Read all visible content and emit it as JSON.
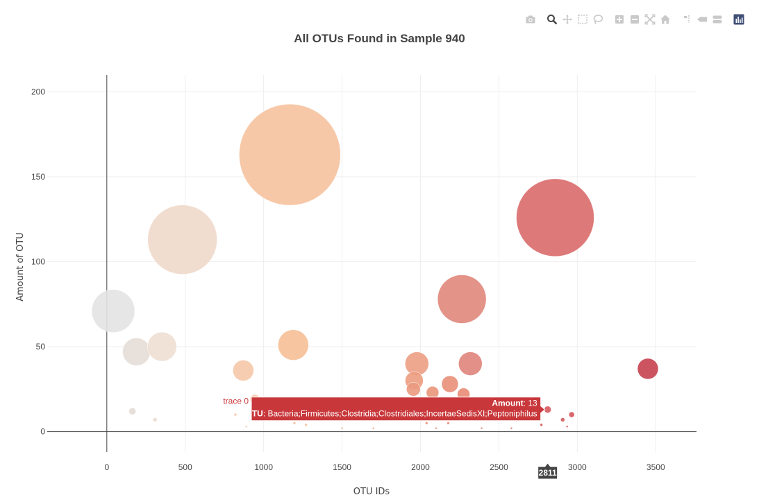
{
  "modebar": {
    "buttons": [
      {
        "name": "camera-icon"
      },
      {
        "name": "zoom-icon"
      },
      {
        "name": "pan-icon"
      },
      {
        "name": "box-select-icon"
      },
      {
        "name": "lasso-select-icon"
      },
      {
        "name": "zoom-in-icon"
      },
      {
        "name": "zoom-out-icon"
      },
      {
        "name": "autoscale-icon"
      },
      {
        "name": "home-icon"
      },
      {
        "name": "spike-lines-icon"
      },
      {
        "name": "hover-closest-icon"
      },
      {
        "name": "hover-compare-icon"
      },
      {
        "name": "plotly-logo-icon"
      }
    ],
    "icon_color": "#c9c9c9",
    "logo_color": "#3f4f75"
  },
  "chart_data": {
    "type": "scatter",
    "mode": "bubble",
    "title": "All OTUs Found in Sample 940",
    "xlabel": "OTU IDs",
    "ylabel": "Amount of OTU",
    "xlim": [
      -380,
      3760
    ],
    "ylim": [
      -12,
      210
    ],
    "xticks": [
      0,
      500,
      1000,
      1500,
      2000,
      2500,
      3000,
      3500
    ],
    "yticks": [
      0,
      50,
      100,
      150,
      200
    ],
    "grid": true,
    "colors": {
      "gridline": "#eeeeee",
      "axis": "#444444",
      "zeroline": "#444444"
    },
    "points": [
      {
        "x": 41,
        "y": 71,
        "r": 31,
        "color": "#e3e3e3"
      },
      {
        "x": 189,
        "y": 47,
        "r": 20,
        "color": "#e6ddd7"
      },
      {
        "x": 352,
        "y": 50,
        "r": 21,
        "color": "#eedfd3"
      },
      {
        "x": 482,
        "y": 113,
        "r": 50,
        "color": "#f0d9cb"
      },
      {
        "x": 163,
        "y": 12,
        "r": 5,
        "color": "#e3dbd6"
      },
      {
        "x": 307,
        "y": 7,
        "r": 3,
        "color": "#ecdccf"
      },
      {
        "x": 870,
        "y": 36,
        "r": 15,
        "color": "#f6c8a9"
      },
      {
        "x": 944,
        "y": 19,
        "r": 7,
        "color": "#f6c8a9"
      },
      {
        "x": 1167,
        "y": 163,
        "r": 73,
        "color": "#f6c29d"
      },
      {
        "x": 1189,
        "y": 51,
        "r": 22,
        "color": "#f6bf96"
      },
      {
        "x": 1977,
        "y": 40,
        "r": 17,
        "color": "#ec9f83"
      },
      {
        "x": 1960,
        "y": 30,
        "r": 13,
        "color": "#ec9c80"
      },
      {
        "x": 1955,
        "y": 25,
        "r": 10,
        "color": "#ea9a7f"
      },
      {
        "x": 2077,
        "y": 23,
        "r": 9,
        "color": "#ea957a"
      },
      {
        "x": 2188,
        "y": 28,
        "r": 12,
        "color": "#e98f78"
      },
      {
        "x": 2275,
        "y": 22,
        "r": 9,
        "color": "#e88b74"
      },
      {
        "x": 2188,
        "y": 18,
        "r": 6,
        "color": "#e98f78"
      },
      {
        "x": 2264,
        "y": 78,
        "r": 35,
        "color": "#e0877b"
      },
      {
        "x": 2318,
        "y": 40,
        "r": 17,
        "color": "#e0847b"
      },
      {
        "x": 2859,
        "y": 126,
        "r": 56,
        "color": "#d96b6a"
      },
      {
        "x": 2811,
        "y": 13,
        "r": 5,
        "color": "#d75a5f"
      },
      {
        "x": 2771,
        "y": 4,
        "r": 2,
        "color": "#d55a5e"
      },
      {
        "x": 2907,
        "y": 7,
        "r": 3,
        "color": "#d45c60"
      },
      {
        "x": 2964,
        "y": 10,
        "r": 4,
        "color": "#d2555c"
      },
      {
        "x": 3450,
        "y": 37,
        "r": 15,
        "color": "#c6404f"
      },
      {
        "x": 1196,
        "y": 5,
        "r": 2,
        "color": "#f5c29e"
      },
      {
        "x": 1270,
        "y": 4,
        "r": 2,
        "color": "#f5c29e"
      },
      {
        "x": 2039,
        "y": 5,
        "r": 2,
        "color": "#ea977d"
      },
      {
        "x": 2177,
        "y": 5,
        "r": 2,
        "color": "#e98f78"
      },
      {
        "x": 2935,
        "y": 3,
        "r": 1.5,
        "color": "#d45c60"
      },
      {
        "x": 890,
        "y": 3,
        "r": 1.5,
        "color": "#f6c8a9"
      },
      {
        "x": 820,
        "y": 10,
        "r": 2,
        "color": "#f6c8a9"
      },
      {
        "x": 2390,
        "y": 2,
        "r": 1.5,
        "color": "#e88b74"
      },
      {
        "x": 2580,
        "y": 2,
        "r": 1.5,
        "color": "#e07b72"
      },
      {
        "x": 1500,
        "y": 2,
        "r": 1.5,
        "color": "#f2b08c"
      },
      {
        "x": 1700,
        "y": 2,
        "r": 1.5,
        "color": "#efa686"
      },
      {
        "x": 2100,
        "y": 2,
        "r": 1.5,
        "color": "#ea947a"
      }
    ],
    "hover": {
      "trace_name": "trace 0",
      "x_label": "2811",
      "x": 2811,
      "y": 13,
      "amount_label": "Amount",
      "amount_value": "13",
      "otu_label": "OTU",
      "otu_value": "Bacteria;Firmicutes;Clostridia;Clostridiales;IncertaeSedisXI;Peptoniphilus",
      "bg_color": "#c8373a",
      "text_color": "#ffffff",
      "x_tag_bg": "#444444"
    }
  }
}
